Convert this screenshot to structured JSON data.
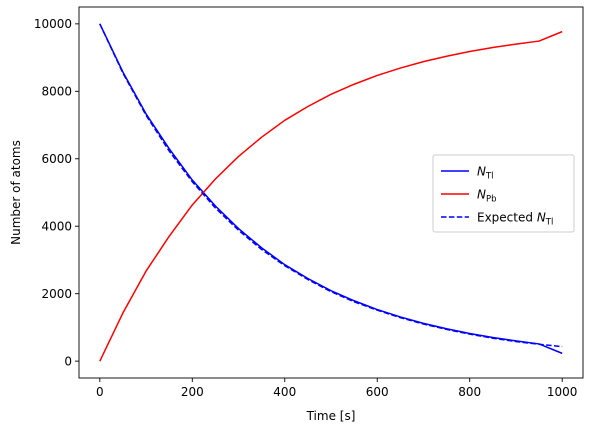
{
  "chart_data": {
    "type": "line",
    "title": "",
    "xlabel": "Time [s]",
    "ylabel": "Number of atoms",
    "xlim": [
      -45,
      1045
    ],
    "ylim": [
      -500,
      10500
    ],
    "xticks": [
      0,
      200,
      400,
      600,
      800,
      1000
    ],
    "yticks": [
      0,
      2000,
      4000,
      6000,
      8000,
      10000
    ],
    "grid": false,
    "legend": "center-right",
    "x": [
      0,
      50,
      100,
      150,
      200,
      250,
      300,
      350,
      400,
      450,
      500,
      550,
      600,
      650,
      700,
      750,
      800,
      850,
      900,
      950,
      1000
    ],
    "series": [
      {
        "name_main": "N",
        "name_sub": "Tl",
        "color": "#0000ff",
        "dash": "solid",
        "values": [
          10000,
          8570,
          7330,
          6300,
          5370,
          4600,
          3930,
          3360,
          2860,
          2450,
          2090,
          1790,
          1530,
          1310,
          1120,
          960,
          820,
          700,
          600,
          510,
          230
        ]
      },
      {
        "name_main": "N",
        "name_sub": "Pb",
        "color": "#ff0000",
        "dash": "solid",
        "values": [
          0,
          1430,
          2670,
          3700,
          4630,
          5400,
          6070,
          6640,
          7140,
          7550,
          7910,
          8210,
          8470,
          8690,
          8880,
          9040,
          9180,
          9300,
          9400,
          9490,
          9770
        ]
      },
      {
        "name_prefix": "Expected ",
        "name_main": "N",
        "name_sub": "Tl",
        "color": "#0000ff",
        "dash": "dashed",
        "values": [
          10000,
          8540,
          7290,
          6230,
          5320,
          4540,
          3880,
          3310,
          2830,
          2420,
          2060,
          1760,
          1510,
          1290,
          1100,
          940,
          800,
          680,
          580,
          500,
          430
        ]
      }
    ]
  }
}
